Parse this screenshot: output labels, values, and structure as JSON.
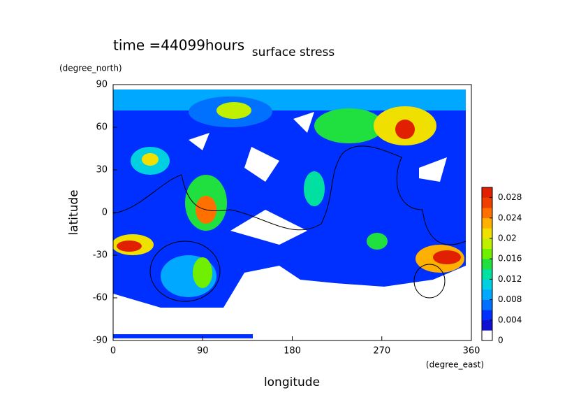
{
  "chart_data": {
    "type": "contour",
    "title": "time =44099hours",
    "subtitle": "surface stress",
    "x_label": "longitude",
    "x_unit": "(degree_east)",
    "y_label": "latitude",
    "y_unit": "(degree_north)",
    "xlim": [
      0,
      360
    ],
    "xticks": [
      0,
      90,
      180,
      270,
      360
    ],
    "ylim": [
      -90,
      90
    ],
    "yticks": [
      -90,
      -60,
      -30,
      0,
      30,
      60,
      90
    ],
    "colorbar": {
      "lim": [
        0,
        0.03
      ],
      "ticks": [
        0,
        0.004,
        0.008,
        0.012,
        0.016,
        0.02,
        0.024,
        0.028
      ],
      "colors": [
        "#ffffff",
        "#1010d0",
        "#0030ff",
        "#0070ff",
        "#00a8ff",
        "#00d0e0",
        "#00e0a0",
        "#20e040",
        "#70f000",
        "#c0f000",
        "#f0e000",
        "#ffb000",
        "#ff7000",
        "#f04000",
        "#e02000"
      ]
    }
  }
}
